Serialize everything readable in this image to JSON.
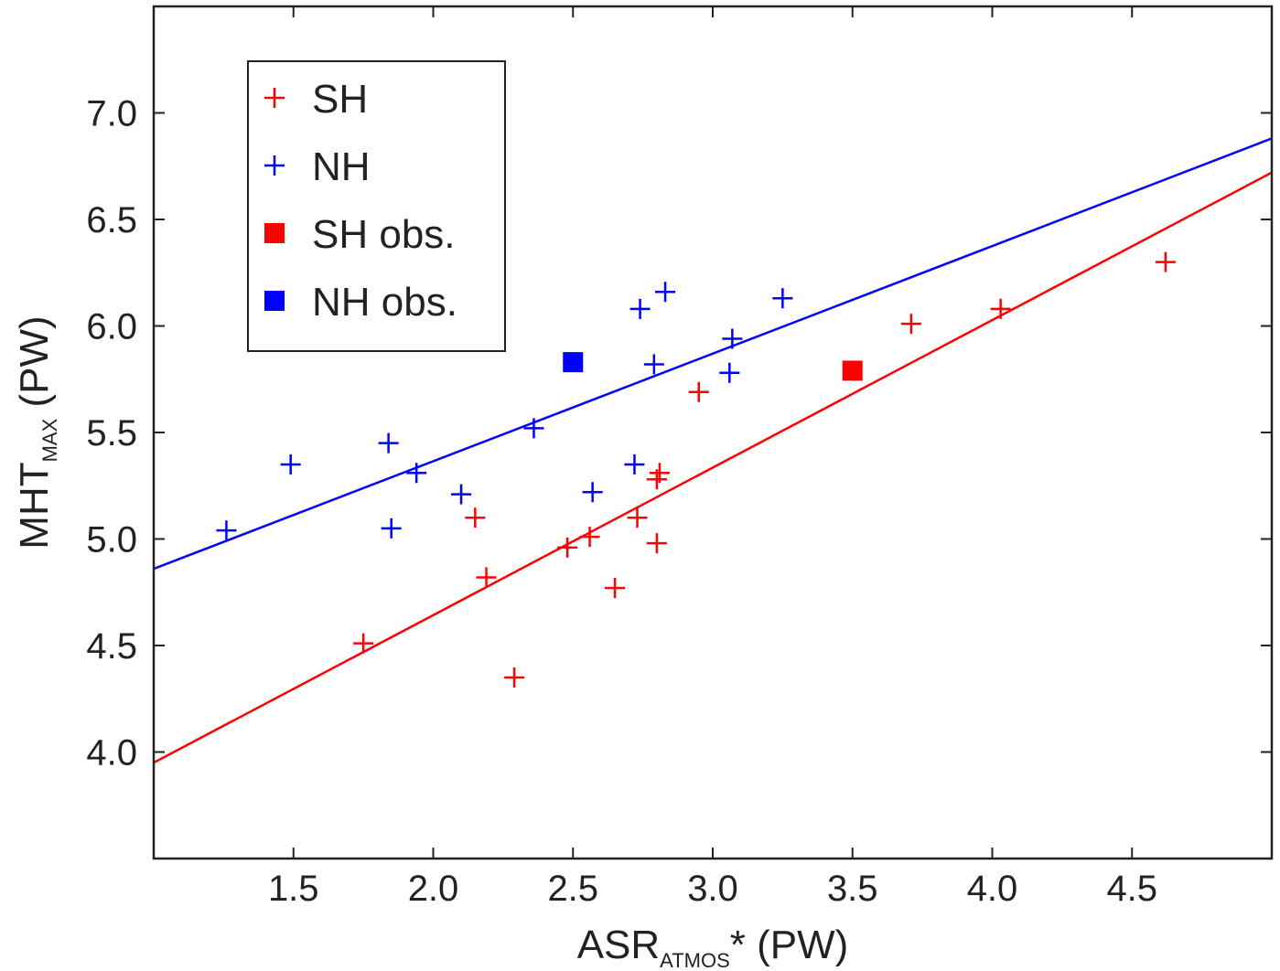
{
  "chart_data": {
    "type": "scatter",
    "title": "",
    "xlabel": {
      "main": "ASR",
      "sub": "ATMOS",
      "suffix": "* (PW)"
    },
    "ylabel": {
      "main": "MHT",
      "sub": "MAX",
      "suffix": " (PW)"
    },
    "xlim": [
      1.0,
      5.0
    ],
    "ylim": [
      3.5,
      7.5
    ],
    "xticks": [
      1.5,
      2.0,
      2.5,
      3.0,
      3.5,
      4.0,
      4.5
    ],
    "xtick_labels": [
      "1.5",
      "2.0",
      "2.5",
      "3.0",
      "3.5",
      "4.0",
      "4.5"
    ],
    "yticks": [
      4.0,
      4.5,
      5.0,
      5.5,
      6.0,
      6.5,
      7.0
    ],
    "ytick_labels": [
      "4.0",
      "4.5",
      "5.0",
      "5.5",
      "6.0",
      "6.5",
      "7.0"
    ],
    "grid": false,
    "legend_position": "top-left",
    "series": [
      {
        "name": "SH",
        "marker": "plus",
        "color": "#ff0000",
        "points": [
          [
            1.75,
            4.51
          ],
          [
            2.15,
            5.1
          ],
          [
            2.19,
            4.82
          ],
          [
            2.29,
            4.35
          ],
          [
            2.48,
            4.96
          ],
          [
            2.56,
            5.01
          ],
          [
            2.65,
            4.77
          ],
          [
            2.73,
            5.1
          ],
          [
            2.8,
            4.98
          ],
          [
            2.8,
            5.28
          ],
          [
            2.81,
            5.31
          ],
          [
            2.95,
            5.69
          ],
          [
            3.71,
            6.01
          ],
          [
            4.03,
            6.08
          ],
          [
            4.62,
            6.3
          ]
        ]
      },
      {
        "name": "NH",
        "marker": "plus",
        "color": "#0000ff",
        "points": [
          [
            1.26,
            5.04
          ],
          [
            1.49,
            5.35
          ],
          [
            1.84,
            5.45
          ],
          [
            1.85,
            5.05
          ],
          [
            1.94,
            5.31
          ],
          [
            2.1,
            5.21
          ],
          [
            2.36,
            5.52
          ],
          [
            2.57,
            5.22
          ],
          [
            2.72,
            5.35
          ],
          [
            2.74,
            6.08
          ],
          [
            2.79,
            5.82
          ],
          [
            2.83,
            6.16
          ],
          [
            3.06,
            5.78
          ],
          [
            3.07,
            5.94
          ],
          [
            3.25,
            6.13
          ]
        ]
      },
      {
        "name": "SH obs.",
        "marker": "square",
        "color": "#ff0000",
        "points": [
          [
            3.5,
            5.79
          ]
        ]
      },
      {
        "name": "NH obs.",
        "marker": "square",
        "color": "#0000ff",
        "points": [
          [
            2.5,
            5.83
          ]
        ]
      }
    ],
    "fit_lines": [
      {
        "series": "SH",
        "color": "#ff0000",
        "x": [
          1.0,
          5.0
        ],
        "y": [
          3.95,
          6.72
        ]
      },
      {
        "series": "NH",
        "color": "#0000ff",
        "x": [
          1.0,
          5.0
        ],
        "y": [
          4.86,
          6.88
        ]
      }
    ],
    "legend": [
      {
        "label": "SH",
        "marker": "plus",
        "color": "#ff0000"
      },
      {
        "label": "NH",
        "marker": "plus",
        "color": "#0000ff"
      },
      {
        "label": "SH obs.",
        "marker": "square",
        "color": "#ff0000"
      },
      {
        "label": "NH obs.",
        "marker": "square",
        "color": "#0000ff"
      }
    ]
  }
}
